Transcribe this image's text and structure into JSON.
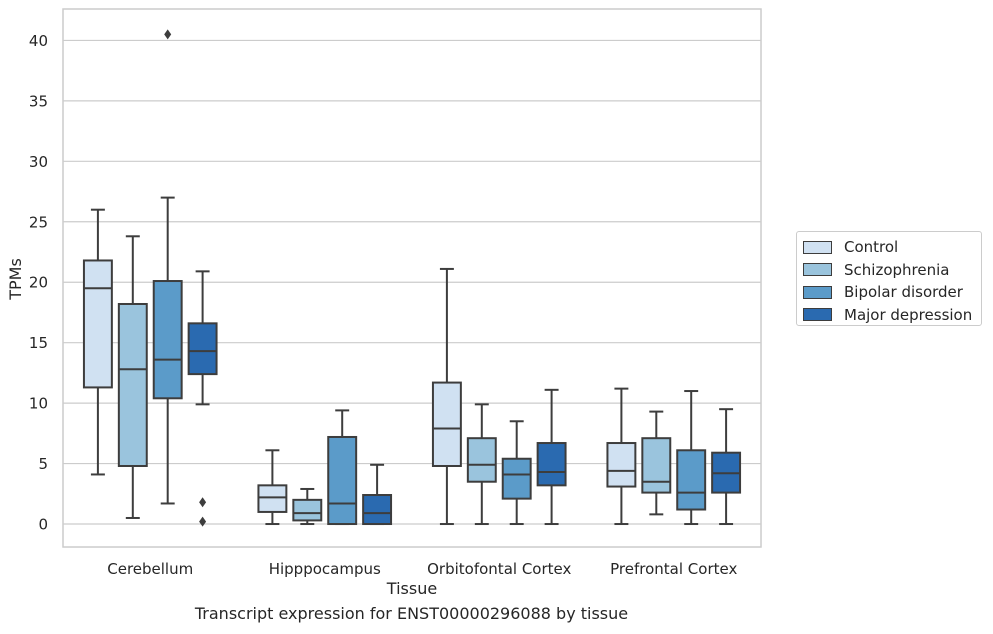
{
  "chart_data": {
    "type": "box",
    "title": "Transcript expression for ENST00000296088 by tissue",
    "xlabel": "Tissue",
    "ylabel": "TPMs",
    "ylim": [
      -1.9,
      42.6
    ],
    "yticks": [
      0,
      5,
      10,
      15,
      20,
      25,
      30,
      35,
      40
    ],
    "grid": "horizontal",
    "legend_position": "right",
    "categories": [
      "Cerebellum",
      "Hipppocampus",
      "Orbitofontal Cortex",
      "Prefrontal Cortex"
    ],
    "series": [
      {
        "name": "Control",
        "color": "#d0e1f2",
        "boxes": [
          {
            "whisker_low": 4.1,
            "q1": 11.3,
            "median": 19.5,
            "q3": 21.8,
            "whisker_high": 26.0,
            "outliers": []
          },
          {
            "whisker_low": 0.0,
            "q1": 1.0,
            "median": 2.2,
            "q3": 3.2,
            "whisker_high": 6.1,
            "outliers": []
          },
          {
            "whisker_low": 0.0,
            "q1": 4.8,
            "median": 7.9,
            "q3": 11.7,
            "whisker_high": 21.1,
            "outliers": []
          },
          {
            "whisker_low": 0.0,
            "q1": 3.1,
            "median": 4.4,
            "q3": 6.7,
            "whisker_high": 11.2,
            "outliers": []
          }
        ]
      },
      {
        "name": "Schizophrenia",
        "color": "#9ac4dd",
        "boxes": [
          {
            "whisker_low": 0.5,
            "q1": 4.8,
            "median": 12.8,
            "q3": 18.2,
            "whisker_high": 23.8,
            "outliers": []
          },
          {
            "whisker_low": 0.0,
            "q1": 0.3,
            "median": 0.9,
            "q3": 2.0,
            "whisker_high": 2.9,
            "outliers": []
          },
          {
            "whisker_low": 0.0,
            "q1": 3.5,
            "median": 4.9,
            "q3": 7.1,
            "whisker_high": 9.9,
            "outliers": []
          },
          {
            "whisker_low": 0.8,
            "q1": 2.6,
            "median": 3.5,
            "q3": 7.1,
            "whisker_high": 9.3,
            "outliers": []
          }
        ]
      },
      {
        "name": "Bipolar disorder",
        "color": "#5b9bc9",
        "boxes": [
          {
            "whisker_low": 1.7,
            "q1": 10.4,
            "median": 13.6,
            "q3": 20.1,
            "whisker_high": 27.0,
            "outliers": [
              40.5
            ]
          },
          {
            "whisker_low": 0.0,
            "q1": 0.0,
            "median": 1.7,
            "q3": 7.2,
            "whisker_high": 9.4,
            "outliers": []
          },
          {
            "whisker_low": 0.0,
            "q1": 2.1,
            "median": 4.1,
            "q3": 5.4,
            "whisker_high": 8.5,
            "outliers": []
          },
          {
            "whisker_low": 0.0,
            "q1": 1.2,
            "median": 2.6,
            "q3": 6.1,
            "whisker_high": 11.0,
            "outliers": []
          }
        ]
      },
      {
        "name": "Major depression",
        "color": "#2a6ab0",
        "boxes": [
          {
            "whisker_low": 9.9,
            "q1": 12.4,
            "median": 14.3,
            "q3": 16.6,
            "whisker_high": 20.9,
            "outliers": [
              1.8,
              0.2
            ]
          },
          {
            "whisker_low": 0.0,
            "q1": 0.0,
            "median": 0.9,
            "q3": 2.4,
            "whisker_high": 4.9,
            "outliers": []
          },
          {
            "whisker_low": 0.0,
            "q1": 3.2,
            "median": 4.3,
            "q3": 6.7,
            "whisker_high": 11.1,
            "outliers": []
          },
          {
            "whisker_low": 0.0,
            "q1": 2.6,
            "median": 4.2,
            "q3": 5.9,
            "whisker_high": 9.5,
            "outliers": []
          }
        ]
      }
    ]
  }
}
